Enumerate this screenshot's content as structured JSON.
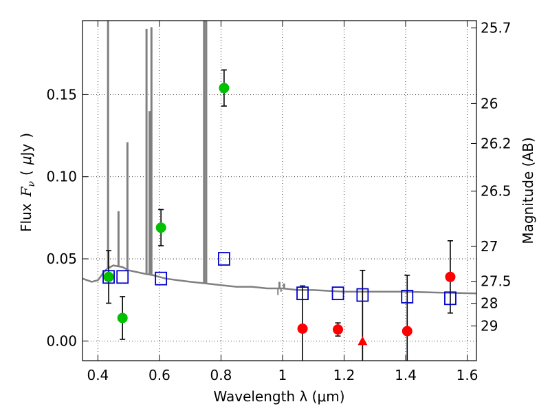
{
  "colors": {
    "sed": "#808080",
    "observed_optical": "#00c000",
    "observed_nir": "#ff0000",
    "model": "#0000cc",
    "errorbar": "#000000"
  },
  "chart_data": {
    "type": "scatter",
    "xlabel": "Wavelength  λ (μm)",
    "ylabel_left": {
      "word": "Flux",
      "symbol": "F",
      "subscript": "ν",
      "units_open": "(",
      "unit_mu": "μ",
      "unit_rest": "Jy",
      "units_close": ")"
    },
    "ylabel_right": "Magnitude (AB)",
    "xlim": [
      0.35,
      1.63
    ],
    "ylim": [
      -0.012,
      0.195
    ],
    "grid": true,
    "x_ticks": [
      {
        "value": 0.4,
        "label": "0.4"
      },
      {
        "value": 0.6,
        "label": "0.6"
      },
      {
        "value": 0.8,
        "label": "0.8"
      },
      {
        "value": 1.0,
        "label": "1"
      },
      {
        "value": 1.2,
        "label": "1.2"
      },
      {
        "value": 1.4,
        "label": "1.4"
      },
      {
        "value": 1.6,
        "label": "1.6"
      }
    ],
    "y_ticks": [
      {
        "value": 0.0,
        "label": "0.00"
      },
      {
        "value": 0.05,
        "label": "0.05"
      },
      {
        "value": 0.1,
        "label": "0.10"
      },
      {
        "value": 0.15,
        "label": "0.15"
      }
    ],
    "mag_ticks": [
      {
        "value": 25.7,
        "label": "25.7"
      },
      {
        "value": 26.0,
        "label": "26"
      },
      {
        "value": 26.2,
        "label": "26.2"
      },
      {
        "value": 26.5,
        "label": "26.5"
      },
      {
        "value": 27.0,
        "label": "27"
      },
      {
        "value": 27.5,
        "label": "27.5"
      },
      {
        "value": 28.0,
        "label": "28"
      },
      {
        "value": 29.0,
        "label": "29"
      }
    ],
    "series": [
      {
        "kind": "observed_optical",
        "marker": "circle",
        "points": [
          {
            "x": 0.435,
            "y": 0.039,
            "err": 0.016
          },
          {
            "x": 0.48,
            "y": 0.014,
            "err": 0.013
          },
          {
            "x": 0.605,
            "y": 0.069,
            "err": 0.011
          },
          {
            "x": 0.81,
            "y": 0.154,
            "err": 0.011
          }
        ]
      },
      {
        "kind": "observed_nir",
        "marker": "circle",
        "points": [
          {
            "x": 1.065,
            "y": 0.0075,
            "err_low": 0.0215,
            "err_high": 0.026
          },
          {
            "x": 1.18,
            "y": 0.007,
            "err": 0.004
          },
          {
            "x": 1.405,
            "y": 0.006,
            "err_low": 0.0185,
            "err_high": 0.034
          },
          {
            "x": 1.545,
            "y": 0.039,
            "err": 0.022
          }
        ]
      },
      {
        "kind": "observed_nir",
        "marker": "triangle",
        "points": [
          {
            "x": 1.26,
            "y": 0.0,
            "err_low": 0.012,
            "err_high": 0.043
          }
        ]
      },
      {
        "kind": "model",
        "marker": "square",
        "points": [
          {
            "x": 0.435,
            "y": 0.039
          },
          {
            "x": 0.48,
            "y": 0.039
          },
          {
            "x": 0.605,
            "y": 0.038
          },
          {
            "x": 0.81,
            "y": 0.05
          },
          {
            "x": 1.065,
            "y": 0.029
          },
          {
            "x": 1.18,
            "y": 0.029
          },
          {
            "x": 1.26,
            "y": 0.028
          },
          {
            "x": 1.405,
            "y": 0.027
          },
          {
            "x": 1.545,
            "y": 0.026
          }
        ]
      }
    ],
    "sed_continuum": [
      [
        0.35,
        0.038
      ],
      [
        0.38,
        0.036
      ],
      [
        0.4,
        0.037
      ],
      [
        0.42,
        0.042
      ],
      [
        0.43,
        0.044
      ],
      [
        0.45,
        0.046
      ],
      [
        0.48,
        0.045
      ],
      [
        0.5,
        0.043
      ],
      [
        0.55,
        0.041
      ],
      [
        0.58,
        0.04
      ],
      [
        0.62,
        0.038
      ],
      [
        0.66,
        0.037
      ],
      [
        0.7,
        0.036
      ],
      [
        0.75,
        0.035
      ],
      [
        0.8,
        0.034
      ],
      [
        0.85,
        0.033
      ],
      [
        0.9,
        0.033
      ],
      [
        0.95,
        0.032
      ],
      [
        1.0,
        0.032
      ],
      [
        1.05,
        0.031
      ],
      [
        1.1,
        0.031
      ],
      [
        1.2,
        0.03
      ],
      [
        1.3,
        0.03
      ],
      [
        1.4,
        0.03
      ],
      [
        1.5,
        0.0295
      ],
      [
        1.63,
        0.029
      ]
    ],
    "sed_lines": [
      {
        "x": 0.433,
        "peak": 0.195
      },
      {
        "x": 0.467,
        "peak": 0.079
      },
      {
        "x": 0.496,
        "peak": 0.121
      },
      {
        "x": 0.558,
        "peak": 0.19
      },
      {
        "x": 0.568,
        "peak": 0.14
      },
      {
        "x": 0.574,
        "peak": 0.191
      },
      {
        "x": 0.745,
        "peak": 0.195
      },
      {
        "x": 0.752,
        "peak": 0.195
      },
      {
        "x": 0.99,
        "peak": 0.036
      },
      {
        "x": 1.005,
        "peak": 0.035
      }
    ],
    "sed_dips": [
      {
        "x": 0.985,
        "depth": 0.028
      },
      {
        "x": 0.995,
        "depth": 0.03
      }
    ]
  }
}
